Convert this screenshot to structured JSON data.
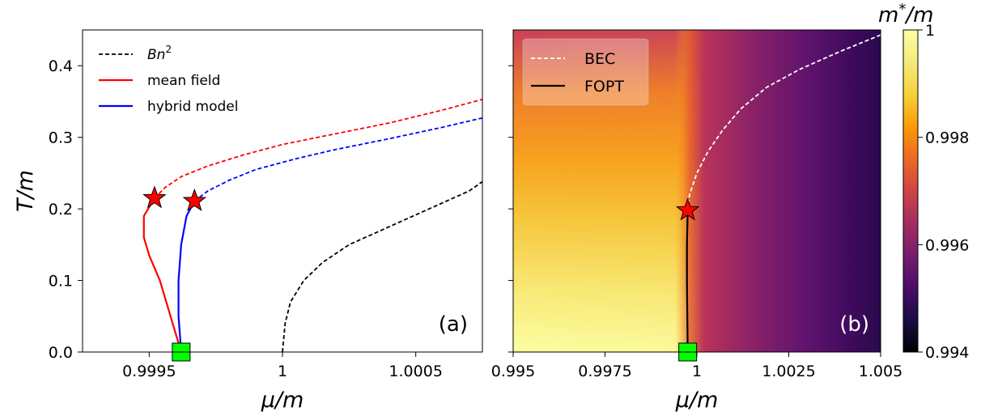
{
  "chart_data": [
    {
      "panel": "a",
      "type": "line",
      "panel_label": "(a)",
      "xlabel": "μ/m",
      "ylabel": "T/m",
      "xlim": [
        0.99925,
        1.00075
      ],
      "ylim": [
        0.0,
        0.45
      ],
      "x_ticks": [
        0.9995,
        1.0,
        1.0005
      ],
      "x_tick_labels": [
        "0.9995",
        "1",
        "1.0005"
      ],
      "y_ticks": [
        0.0,
        0.1,
        0.2,
        0.3,
        0.4
      ],
      "y_tick_labels": [
        "0.0",
        "0.1",
        "0.2",
        "0.3",
        "0.4"
      ],
      "grid": false,
      "legend_position": "top-left",
      "legend": [
        {
          "label": "Bn",
          "sup": "2",
          "color": "#000000",
          "style": "dashed"
        },
        {
          "label": "mean field",
          "color": "#ff0000",
          "style": "solid"
        },
        {
          "label": "hybrid model",
          "color": "#0000ff",
          "style": "solid"
        }
      ],
      "series": [
        {
          "name": "Bn²",
          "color": "#000000",
          "style": "dashed",
          "points": [
            [
              1.0,
              0.0
            ],
            [
              1.00001,
              0.04
            ],
            [
              1.00003,
              0.07
            ],
            [
              1.00008,
              0.1
            ],
            [
              1.00015,
              0.125
            ],
            [
              1.00025,
              0.15
            ],
            [
              1.0004,
              0.175
            ],
            [
              1.00055,
              0.2
            ],
            [
              1.0007,
              0.225
            ],
            [
              1.00075,
              0.238
            ]
          ]
        },
        {
          "name": "mean field",
          "color": "#ff0000",
          "style": "solid",
          "points": [
            [
              0.99962,
              0.0
            ],
            [
              0.99958,
              0.05
            ],
            [
              0.99954,
              0.1
            ],
            [
              0.9995,
              0.135
            ],
            [
              0.99948,
              0.16
            ],
            [
              0.99948,
              0.19
            ],
            [
              0.99952,
              0.215
            ]
          ]
        },
        {
          "name": "mean field (dashed)",
          "color": "#ff0000",
          "style": "dashed",
          "points": [
            [
              0.99952,
              0.215
            ],
            [
              0.99956,
              0.23
            ],
            [
              0.99962,
              0.245
            ],
            [
              0.99972,
              0.26
            ],
            [
              0.99985,
              0.275
            ],
            [
              1.0,
              0.29
            ],
            [
              1.0002,
              0.305
            ],
            [
              1.0004,
              0.32
            ],
            [
              1.0006,
              0.338
            ],
            [
              1.00075,
              0.353
            ]
          ]
        },
        {
          "name": "hybrid model",
          "color": "#0000ff",
          "style": "solid",
          "points": [
            [
              0.99962,
              0.0
            ],
            [
              0.99961,
              0.05
            ],
            [
              0.99961,
              0.1
            ],
            [
              0.99962,
              0.15
            ],
            [
              0.99964,
              0.19
            ],
            [
              0.99967,
              0.211
            ]
          ]
        },
        {
          "name": "hybrid model (dashed)",
          "color": "#0000ff",
          "style": "dashed",
          "points": [
            [
              0.99967,
              0.211
            ],
            [
              0.99972,
              0.225
            ],
            [
              0.9998,
              0.24
            ],
            [
              0.9999,
              0.255
            ],
            [
              1.00005,
              0.27
            ],
            [
              1.0002,
              0.283
            ],
            [
              1.0004,
              0.298
            ],
            [
              1.0006,
              0.314
            ],
            [
              1.00075,
              0.327
            ]
          ]
        }
      ],
      "markers": [
        {
          "name": "critical-point-mean-field",
          "shape": "star",
          "color": "#ff0000",
          "x": 0.99952,
          "y": 0.215
        },
        {
          "name": "critical-point-hybrid",
          "shape": "star",
          "color": "#ff0000",
          "x": 0.99967,
          "y": 0.211
        },
        {
          "name": "zero-temperature-point",
          "shape": "square",
          "color": "#00ff00",
          "x": 0.99962,
          "y": 0.0
        }
      ]
    },
    {
      "panel": "b",
      "type": "heatmap",
      "panel_label": "(b)",
      "xlabel": "μ/m",
      "xlim": [
        0.995,
        1.005
      ],
      "ylim": [
        0.0,
        0.45
      ],
      "x_ticks": [
        0.995,
        0.9975,
        1.0,
        1.0025,
        1.005
      ],
      "x_tick_labels": [
        "0.995",
        "0.9975",
        "1",
        "1.0025",
        "1.005"
      ],
      "y_ticks": [
        0.0,
        0.1,
        0.2,
        0.3,
        0.4
      ],
      "colormap": "inferno",
      "colorbar": {
        "label": "m",
        "label_sup": "*",
        "label_suffix": "/m",
        "range": [
          0.994,
          1.0
        ],
        "ticks": [
          0.994,
          0.996,
          0.998,
          1.0
        ],
        "tick_labels": [
          "0.994",
          "0.996",
          "0.998",
          "1"
        ]
      },
      "legend_position": "top-left",
      "legend": [
        {
          "label": "BEC",
          "color": "#ffffff",
          "style": "dashed"
        },
        {
          "label": "FOPT",
          "color": "#000000",
          "style": "solid"
        }
      ],
      "series": [
        {
          "name": "BEC",
          "color": "#ffffff",
          "style": "dashed",
          "points": [
            [
              0.99975,
              0.198
            ],
            [
              0.9998,
              0.22
            ],
            [
              1.0,
              0.25
            ],
            [
              1.0003,
              0.28
            ],
            [
              1.0007,
              0.31
            ],
            [
              1.0012,
              0.34
            ],
            [
              1.0019,
              0.37
            ],
            [
              1.0028,
              0.395
            ],
            [
              1.0039,
              0.42
            ],
            [
              1.005,
              0.443
            ]
          ]
        },
        {
          "name": "FOPT",
          "color": "#000000",
          "style": "solid",
          "points": [
            [
              0.99975,
              0.0
            ],
            [
              0.99974,
              0.05
            ],
            [
              0.99973,
              0.1
            ],
            [
              0.99973,
              0.15
            ],
            [
              0.99975,
              0.198
            ]
          ]
        }
      ],
      "markers": [
        {
          "name": "critical-point",
          "shape": "star",
          "color": "#ff0000",
          "x": 0.99975,
          "y": 0.198
        },
        {
          "name": "zero-temperature-point",
          "shape": "square",
          "color": "#00ff00",
          "x": 0.99975,
          "y": 0.0
        }
      ]
    }
  ]
}
